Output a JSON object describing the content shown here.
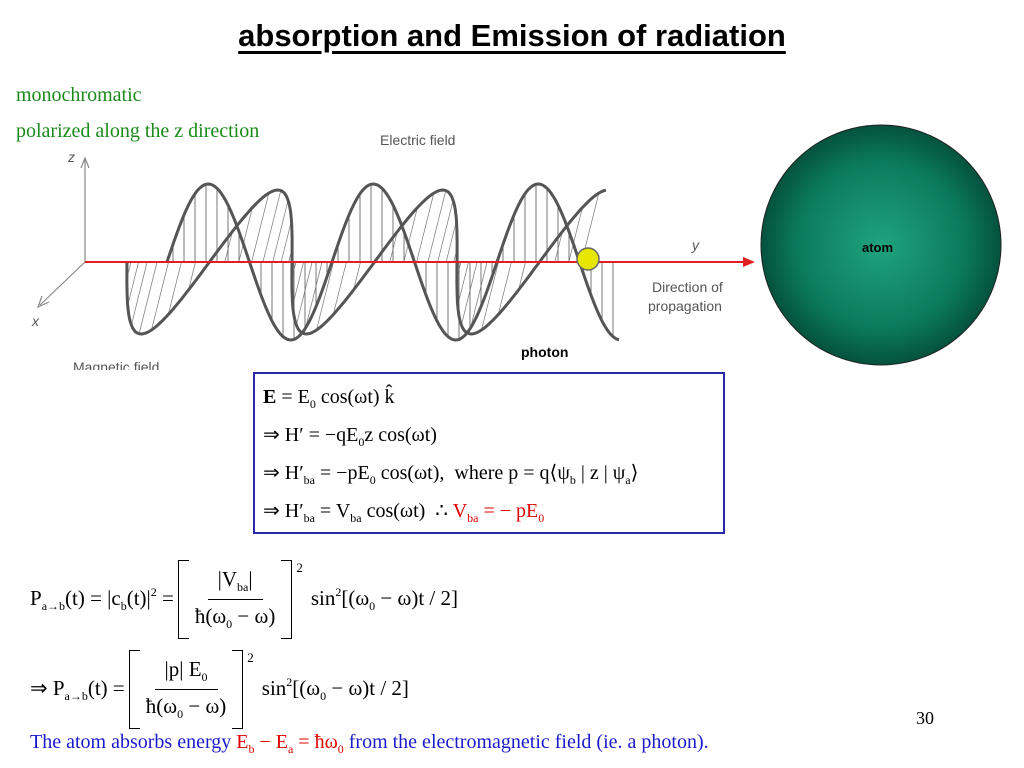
{
  "header": {
    "title": "absorption and Emission of radiation"
  },
  "notes": [
    "monochromatic",
    "polarized along the z direction"
  ],
  "diagram": {
    "electric_field": "Electric field",
    "magnetic_field": "Magnetic field",
    "z_axis": "z",
    "y_axis": "y",
    "x_axis": "x",
    "direction": [
      "Direction of",
      "propagation"
    ],
    "photon": "photon",
    "atom": "atom"
  },
  "box_equations": [
    [
      {
        "text": "E",
        "style": "b"
      },
      {
        "text": " = E"
      },
      {
        "text": "0",
        "style": "sub"
      },
      {
        "text": " cos(ωt) k̂"
      }
    ],
    [
      {
        "text": "⇒ H′ = −qE"
      },
      {
        "text": "0",
        "style": "sub"
      },
      {
        "text": "z cos(ωt)"
      }
    ],
    [
      {
        "text": "⇒ H′"
      },
      {
        "text": "ba",
        "style": "sub"
      },
      {
        "text": " = −pE"
      },
      {
        "text": "0",
        "style": "sub"
      },
      {
        "text": " cos(ωt),  where p = q⟨ψ"
      },
      {
        "text": "b",
        "style": "sub"
      },
      {
        "text": " | z | ψ"
      },
      {
        "text": "a",
        "style": "sub"
      },
      {
        "text": "⟩"
      }
    ],
    [
      {
        "text": "⇒ H′"
      },
      {
        "text": "ba",
        "style": "sub"
      },
      {
        "text": " = V"
      },
      {
        "text": "ba",
        "style": "sub"
      },
      {
        "text": " cos(ωt)  ∴ "
      },
      {
        "text": "V",
        "style": "red"
      },
      {
        "text": "ba",
        "style": "red-sub"
      },
      {
        "text": " = − pE",
        "style": "red"
      },
      {
        "text": "0",
        "style": "red-sub"
      }
    ]
  ],
  "formulas": [
    {
      "lhs": [
        {
          "text": "P"
        },
        {
          "text": "a→b",
          "style": "sub"
        },
        {
          "text": "(t) = |c"
        },
        {
          "text": "b",
          "style": "sub"
        },
        {
          "text": "(t)|"
        },
        {
          "text": "2",
          "style": "sup"
        },
        {
          "text": " ="
        }
      ],
      "numerator": [
        {
          "text": "|V"
        },
        {
          "text": "ba",
          "style": "sub"
        },
        {
          "text": "|"
        }
      ],
      "denominator": [
        {
          "text": "ħ(ω"
        },
        {
          "text": "0",
          "style": "sub"
        },
        {
          "text": " − ω)"
        }
      ],
      "exponent": "2",
      "rhs": [
        {
          "text": "sin"
        },
        {
          "text": "2",
          "style": "sup"
        },
        {
          "text": "[(ω"
        },
        {
          "text": "0",
          "style": "sub"
        },
        {
          "text": " − ω)t / 2]"
        }
      ]
    },
    {
      "lhs": [
        {
          "text": "⇒ P"
        },
        {
          "text": "a→b",
          "style": "sub"
        },
        {
          "text": "(t) ="
        }
      ],
      "numerator": [
        {
          "text": "|p| E"
        },
        {
          "text": "0",
          "style": "sub"
        }
      ],
      "denominator": [
        {
          "text": "ħ(ω"
        },
        {
          "text": "0",
          "style": "sub"
        },
        {
          "text": " − ω)"
        }
      ],
      "exponent": "2",
      "rhs": [
        {
          "text": "sin"
        },
        {
          "text": "2",
          "style": "sup"
        },
        {
          "text": "[(ω"
        },
        {
          "text": "0",
          "style": "sub"
        },
        {
          "text": " − ω)t / 2]"
        }
      ]
    }
  ],
  "page_number": "30",
  "footer": [
    {
      "text": "The atom absorbs energy ",
      "style": "blue"
    },
    {
      "text": "E",
      "style": "red"
    },
    {
      "text": "b",
      "style": "red-sub"
    },
    {
      "text": " − E",
      "style": "red"
    },
    {
      "text": "a",
      "style": "red-sub"
    },
    {
      "text": " = ħω",
      "style": "red"
    },
    {
      "text": "0",
      "style": "red-sub"
    },
    {
      "text": " from the electromagnetic field (ie. a photon).",
      "style": "blue"
    }
  ]
}
